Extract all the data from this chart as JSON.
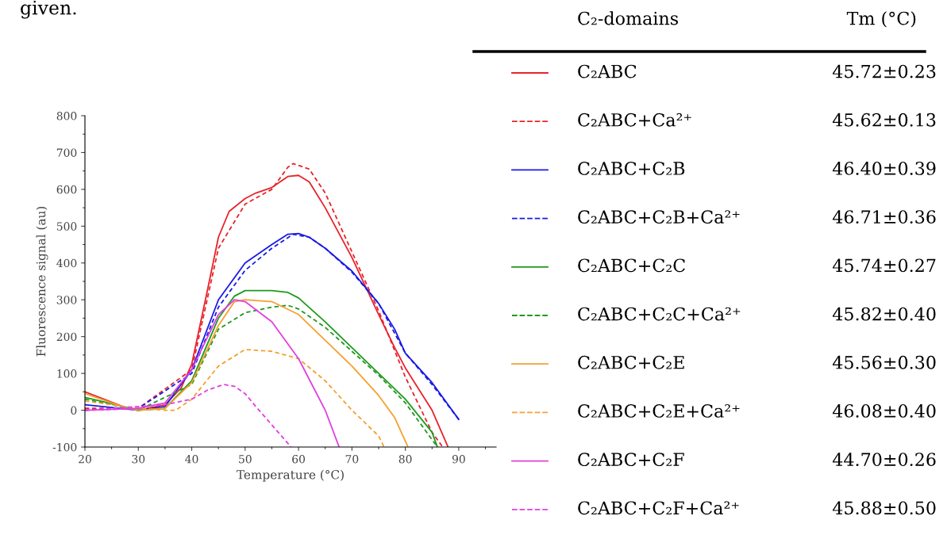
{
  "chart_data": {
    "type": "line",
    "xlabel": "Temperature (°C)",
    "ylabel": "Fluorescence signal (au)",
    "xlim": [
      20,
      97
    ],
    "ylim": [
      -100,
      800
    ],
    "xticks": [
      20,
      30,
      40,
      50,
      60,
      70,
      80,
      90
    ],
    "yticks": [
      -100,
      0,
      100,
      200,
      300,
      400,
      500,
      600,
      700,
      800
    ],
    "grid": false,
    "legend": "right",
    "legend_title": "C₂-domains",
    "marker": "none",
    "annotations": [
      "given.",
      "Tm (°C)",
      "45.72±0.23",
      "45.62±0.13",
      "46.40±0.39",
      "46.71±0.36",
      "45.74±0.27",
      "45.82±0.40",
      "45.56±0.30",
      "46.08±0.40",
      "44.70±0.26",
      "45.88±0.50"
    ],
    "series": [
      {
        "name": "C₂ABC",
        "color": "#e8232a",
        "line_style": "solid",
        "x": [
          20,
          28,
          30,
          35,
          38,
          40,
          43,
          45,
          47,
          50,
          52,
          55,
          58,
          60,
          62,
          65,
          70,
          75,
          78,
          80,
          85,
          88
        ],
        "values": [
          50,
          5,
          0,
          15,
          60,
          125,
          330,
          470,
          540,
          575,
          590,
          605,
          635,
          638,
          620,
          550,
          415,
          260,
          170,
          115,
          0,
          -100
        ]
      },
      {
        "name": "C₂ABC+Ca²⁺",
        "color": "#e8232a",
        "line_style": "dashed",
        "x": [
          20,
          30,
          40,
          45,
          50,
          55,
          58,
          59,
          62,
          65,
          70,
          75,
          80,
          85,
          87
        ],
        "values": [
          5,
          5,
          110,
          440,
          560,
          600,
          660,
          670,
          655,
          590,
          430,
          270,
          90,
          -60,
          -100
        ]
      },
      {
        "name": "C₂ABC+C₂B",
        "color": "#1a1ae6",
        "line_style": "solid",
        "x": [
          20,
          30,
          35,
          40,
          45,
          50,
          55,
          58,
          60,
          62,
          65,
          70,
          75,
          78,
          80,
          85,
          90
        ],
        "values": [
          15,
          0,
          10,
          110,
          300,
          400,
          450,
          478,
          480,
          470,
          440,
          378,
          290,
          220,
          155,
          75,
          -25
        ]
      },
      {
        "name": "C₂ABC+C₂B+Ca²⁺",
        "color": "#1a1ae6",
        "line_style": "dashed",
        "x": [
          20,
          30,
          40,
          45,
          50,
          55,
          59,
          62,
          65,
          70,
          75,
          80,
          85,
          90
        ],
        "values": [
          0,
          5,
          100,
          280,
          380,
          440,
          478,
          470,
          440,
          375,
          290,
          155,
          70,
          -25
        ]
      },
      {
        "name": "C₂ABC+C₂C",
        "color": "#1e9a1e",
        "line_style": "solid",
        "x": [
          20,
          30,
          35,
          40,
          45,
          48,
          50,
          55,
          58,
          60,
          65,
          70,
          75,
          80,
          85,
          86
        ],
        "values": [
          35,
          0,
          5,
          80,
          250,
          310,
          325,
          325,
          320,
          305,
          240,
          170,
          100,
          30,
          -60,
          -100
        ]
      },
      {
        "name": "C₂ABC+C₂C+Ca²⁺",
        "color": "#1e9a1e",
        "line_style": "dashed",
        "x": [
          20,
          30,
          40,
          45,
          50,
          55,
          58,
          60,
          65,
          70,
          75,
          80,
          85,
          86
        ],
        "values": [
          30,
          0,
          70,
          220,
          265,
          280,
          285,
          275,
          225,
          160,
          95,
          20,
          -80,
          -100
        ]
      },
      {
        "name": "C₂ABC+C₂E",
        "color": "#f5a030",
        "line_style": "solid",
        "x": [
          20,
          28,
          30,
          35,
          40,
          45,
          48,
          50,
          55,
          60,
          65,
          70,
          75,
          78,
          80.5
        ],
        "values": [
          45,
          5,
          0,
          5,
          75,
          230,
          295,
          300,
          295,
          260,
          190,
          120,
          40,
          -20,
          -100
        ]
      },
      {
        "name": "C₂ABC+C₂E+Ca²⁺",
        "color": "#f5a030",
        "line_style": "dashed",
        "x": [
          20,
          30,
          35,
          37,
          40,
          45,
          50,
          55,
          60,
          65,
          70,
          75,
          76
        ],
        "values": [
          25,
          5,
          0,
          0,
          30,
          120,
          165,
          160,
          140,
          80,
          0,
          -70,
          -100
        ]
      },
      {
        "name": "C₂ABC+C₂F",
        "color": "#e040e0",
        "line_style": "solid",
        "x": [
          20,
          30,
          35,
          40,
          45,
          48,
          50,
          55,
          60,
          65,
          67.6
        ],
        "values": [
          0,
          5,
          20,
          110,
          260,
          300,
          295,
          240,
          140,
          0,
          -100
        ]
      },
      {
        "name": "C₂ABC+C₂F+Ca²⁺",
        "color": "#e040e0",
        "line_style": "dashed",
        "x": [
          20,
          30,
          35,
          40,
          43,
          46,
          48,
          50,
          52,
          55,
          58,
          58.6
        ],
        "values": [
          0,
          10,
          15,
          30,
          55,
          70,
          65,
          45,
          10,
          -40,
          -90,
          -100
        ]
      }
    ]
  }
}
